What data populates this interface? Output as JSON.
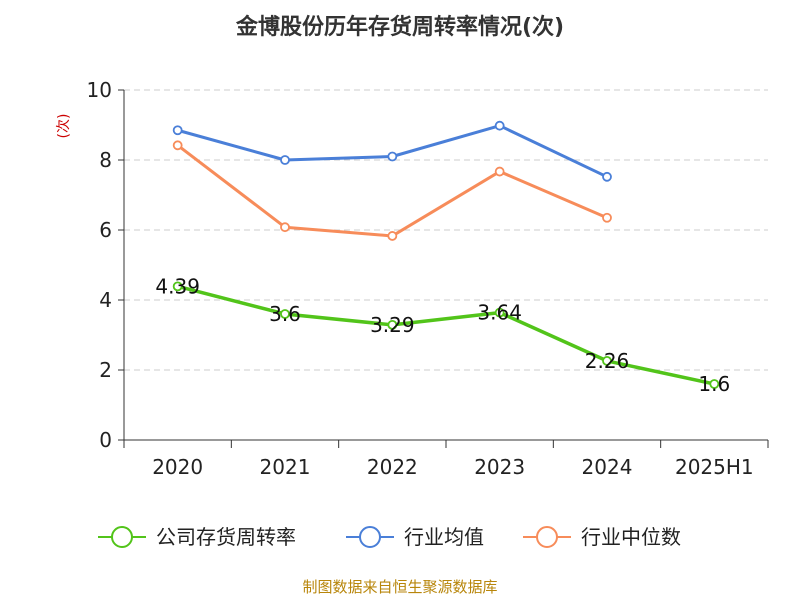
{
  "chart_data": {
    "type": "line",
    "title": "金博股份历年存货周转率情况(次)",
    "ylabel": "(次)",
    "xlabel": "",
    "categories": [
      "2020",
      "2021",
      "2022",
      "2023",
      "2024",
      "2025H1"
    ],
    "ylim": [
      0,
      10
    ],
    "yticks": [
      0,
      2,
      4,
      6,
      8,
      10
    ],
    "grid": true,
    "legend_position": "bottom",
    "series": [
      {
        "name": "公司存货周转率",
        "color": "#52c41a",
        "values": [
          4.39,
          3.6,
          3.29,
          3.64,
          2.26,
          1.6
        ],
        "labels": [
          "4.39",
          "3.6",
          "3.29",
          "3.64",
          "2.26",
          "1.6"
        ]
      },
      {
        "name": "行业均值",
        "color": "#4a7fd8",
        "values": [
          8.85,
          8.0,
          8.1,
          8.98,
          7.52,
          null
        ]
      },
      {
        "name": "行业中位数",
        "color": "#f78c5a",
        "values": [
          8.42,
          6.08,
          5.83,
          7.67,
          6.35,
          null
        ]
      }
    ]
  },
  "source": "制图数据来自恒生聚源数据库"
}
